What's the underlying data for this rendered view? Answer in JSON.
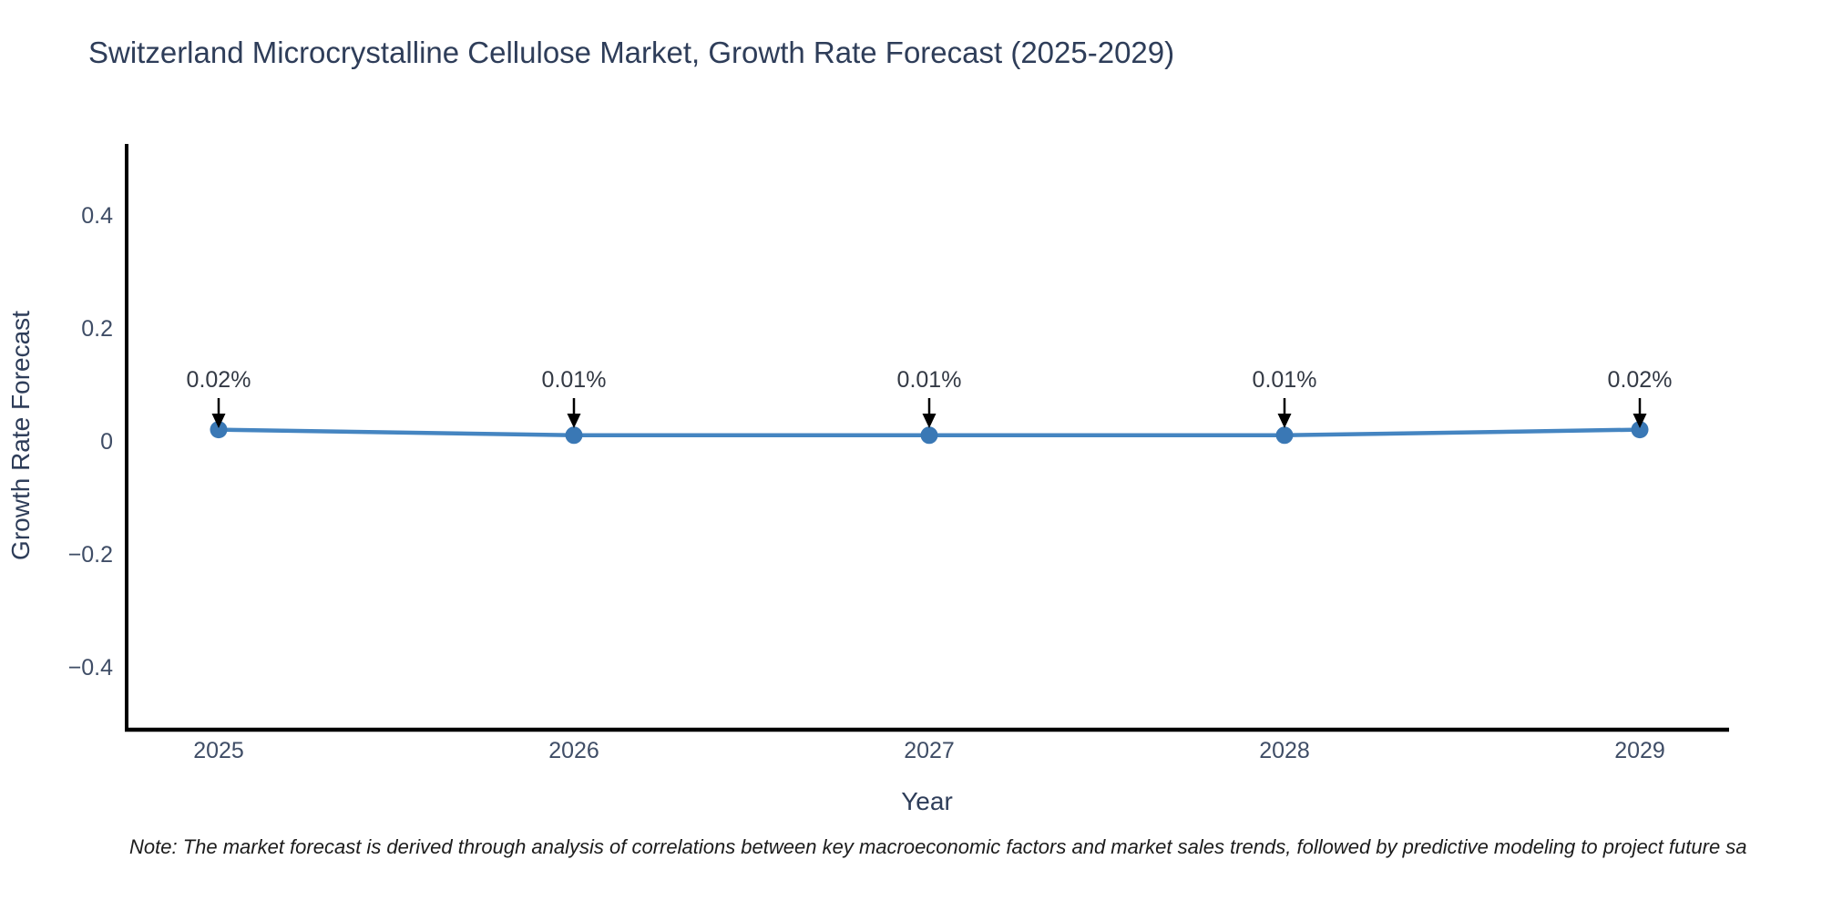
{
  "page": {
    "note": "Note: The market forecast is derived through analysis of correlations between key macroeconomic factors and market sales trends, followed by predictive modeling to project future sa"
  },
  "chart_data": {
    "type": "line",
    "title": "Switzerland Microcrystalline Cellulose Market, Growth Rate Forecast (2025-2029)",
    "xlabel": "Year",
    "ylabel": "Growth Rate Forecast",
    "categories": [
      "2025",
      "2026",
      "2027",
      "2028",
      "2029"
    ],
    "series": [
      {
        "name": "Growth Rate Forecast",
        "values": [
          0.02,
          0.01,
          0.01,
          0.01,
          0.02
        ]
      }
    ],
    "point_labels": [
      "0.02%",
      "0.01%",
      "0.01%",
      "0.01%",
      "0.02%"
    ],
    "yticks": {
      "values": [
        0.4,
        0.2,
        0,
        -0.2,
        -0.4
      ],
      "labels": [
        "0.4",
        "0.2",
        "0",
        "−0.2",
        "−0.4"
      ]
    },
    "ylim": [
      -0.51,
      0.52
    ],
    "grid": false,
    "legend_position": "none",
    "annotation_style": "text-with-down-arrow",
    "colors": {
      "line": "#4585c1",
      "marker": "#3a78b5",
      "axis": "#000000",
      "arrow": "#000000",
      "title_text": "#2e3d59",
      "axis_title_text": "#2e3d59",
      "tick_text": "#3f4d66",
      "annotation_text": "#333944",
      "note_text": "#1c1c1c",
      "background": "#ffffff"
    }
  }
}
